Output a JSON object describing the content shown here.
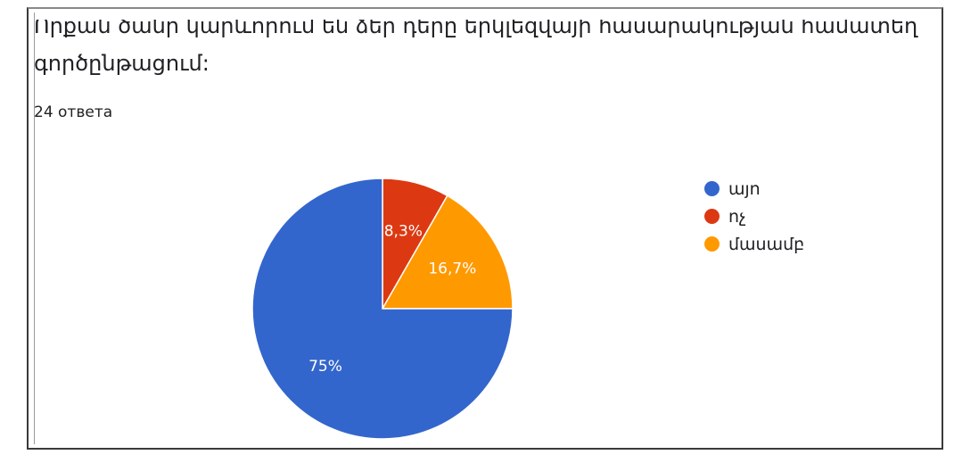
{
  "question": {
    "line1": "Որքան ծանր կարևորում են ձեր դերը երկլեզվայի հասարակության համատեղ",
    "line2": "գործընթացում:",
    "responses": "24 ответа"
  },
  "colors": {
    "blue": "#3366CC",
    "red": "#DC3912",
    "orange": "#FF9900"
  },
  "chart_data": {
    "type": "pie",
    "title": "",
    "legend_position": "right",
    "slices": [
      {
        "label": "այո",
        "value": 75,
        "display": "75%",
        "color": "#3366CC"
      },
      {
        "label": "ոչ",
        "value": 8.3,
        "display": "8,3%",
        "color": "#DC3912"
      },
      {
        "label": "մասամբ",
        "value": 16.7,
        "display": "16,7%",
        "color": "#FF9900"
      }
    ]
  }
}
